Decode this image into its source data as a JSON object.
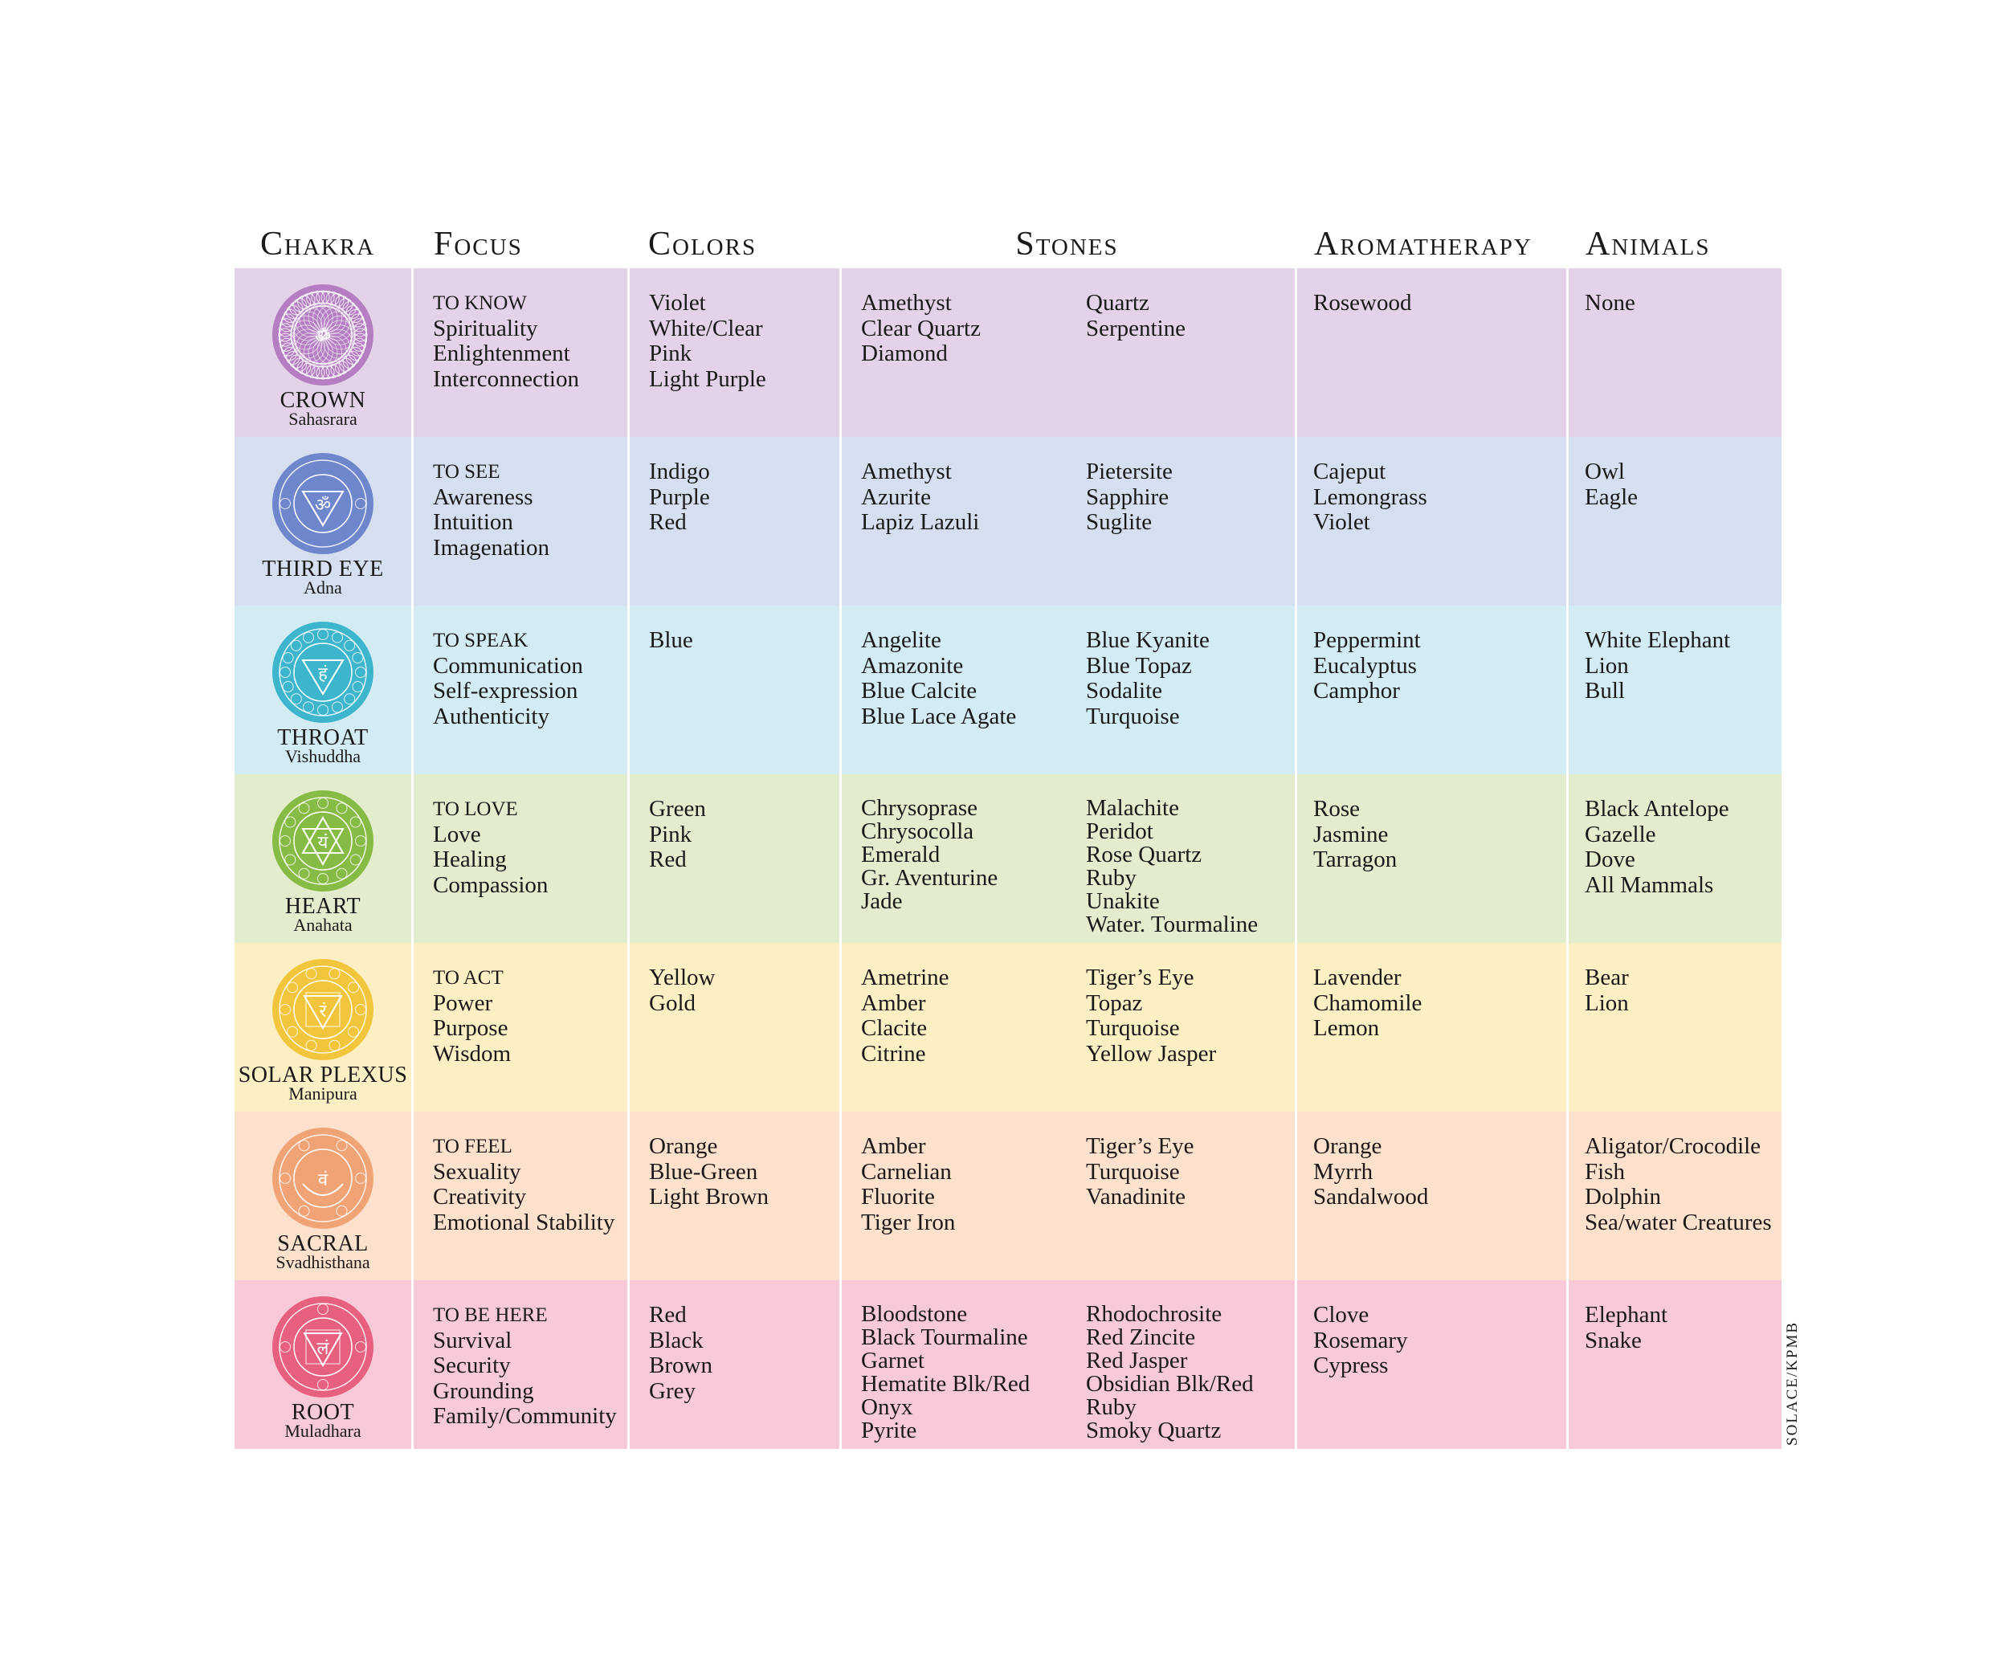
{
  "headers": {
    "chakra": "Chakra",
    "focus": "Focus",
    "colors": "Colors",
    "stones": "Stones",
    "aromatherapy": "Aromatherapy",
    "animals": "Animals"
  },
  "rows": [
    {
      "name": "CROWN",
      "sanskrit": "Sahasrara",
      "color": "#b57ec2",
      "bg": "#e4d2e8",
      "glyph": "ॐ",
      "focus_title": "TO KNOW",
      "focus": [
        "Spirituality",
        "Enlightenment",
        "Interconnection"
      ],
      "colors": [
        "Violet",
        "White/Clear",
        "Pink",
        "Light Purple"
      ],
      "stones_a": [
        "Amethyst",
        "Clear Quartz",
        "Diamond"
      ],
      "stones_b": [
        "Quartz",
        "Serpentine"
      ],
      "aroma": [
        "Rosewood"
      ],
      "animals": [
        "None"
      ]
    },
    {
      "name": "THIRD EYE",
      "sanskrit": "Adna",
      "color": "#6e86cc",
      "bg": "#d6dff0",
      "glyph": "ॐ",
      "focus_title": "TO SEE",
      "focus": [
        "Awareness",
        "Intuition",
        "Imagenation"
      ],
      "colors": [
        "Indigo",
        "Purple",
        "Red"
      ],
      "stones_a": [
        "Amethyst",
        "Azurite",
        "Lapiz Lazuli"
      ],
      "stones_b": [
        "Pietersite",
        "Sapphire",
        "Suglite"
      ],
      "aroma": [
        "Cajeput",
        "Lemongrass",
        "Violet"
      ],
      "animals": [
        "Owl",
        "Eagle"
      ]
    },
    {
      "name": "THROAT",
      "sanskrit": "Vishuddha",
      "color": "#3cb5cd",
      "bg": "#d3ebf2",
      "glyph": "हं",
      "focus_title": "TO SPEAK",
      "focus": [
        "Communication",
        "Self-expression",
        "Authenticity"
      ],
      "colors": [
        "Blue"
      ],
      "stones_a": [
        "Angelite",
        "Amazonite",
        "Blue Calcite",
        "Blue Lace Agate"
      ],
      "stones_b": [
        "Blue Kyanite",
        "Blue Topaz",
        "Sodalite",
        "Turquoise"
      ],
      "aroma": [
        "Peppermint",
        "Eucalyptus",
        "Camphor"
      ],
      "animals": [
        "White Elephant",
        "Lion",
        "Bull"
      ]
    },
    {
      "name": "HEART",
      "sanskrit": "Anahata",
      "color": "#86bb45",
      "bg": "#e3edce",
      "glyph": "यं",
      "focus_title": "TO LOVE",
      "focus": [
        "Love",
        "Healing",
        "Compassion"
      ],
      "colors": [
        "Green",
        "Pink",
        "Red"
      ],
      "stones_a": [
        "Chrysoprase",
        "Chrysocolla",
        "Emerald",
        "Gr. Aventurine",
        "Jade"
      ],
      "stones_b": [
        "Malachite",
        "Peridot",
        "Rose Quartz",
        "Ruby",
        "Unakite",
        "Water. Tourmaline"
      ],
      "aroma": [
        "Rose",
        "Jasmine",
        "Tarragon"
      ],
      "animals": [
        "Black Antelope",
        "Gazelle",
        "Dove",
        "All Mammals"
      ]
    },
    {
      "name": "SOLAR PLEXUS",
      "sanskrit": "Manipura",
      "color": "#f2c63c",
      "bg": "#fcefc3",
      "glyph": "रं",
      "focus_title": "TO ACT",
      "focus": [
        "Power",
        "Purpose",
        "Wisdom"
      ],
      "colors": [
        "Yellow",
        "Gold"
      ],
      "stones_a": [
        "Ametrine",
        "Amber",
        "Clacite",
        "Citrine"
      ],
      "stones_b": [
        "Tiger’s Eye",
        "Topaz",
        "Turquoise",
        "Yellow Jasper"
      ],
      "aroma": [
        "Lavender",
        "Chamomile",
        "Lemon"
      ],
      "animals": [
        "Bear",
        "Lion"
      ]
    },
    {
      "name": "SACRAL",
      "sanskrit": "Svadhisthana",
      "color": "#f0a476",
      "bg": "#fde1cd",
      "glyph": "वं",
      "focus_title": "TO FEEL",
      "focus": [
        "Sexuality",
        "Creativity",
        "Emotional Stability"
      ],
      "colors": [
        "Orange",
        "Blue-Green",
        "Light Brown"
      ],
      "stones_a": [
        "Amber",
        "Carnelian",
        "Fluorite",
        "Tiger Iron"
      ],
      "stones_b": [
        "Tiger’s Eye",
        "Turquoise",
        "Vanadinite"
      ],
      "aroma": [
        "Orange",
        "Myrrh",
        "Sandalwood"
      ],
      "animals": [
        "Aligator/Crocodile",
        "Fish",
        "Dolphin",
        "Sea/water Creatures"
      ]
    },
    {
      "name": "ROOT",
      "sanskrit": "Muladhara",
      "color": "#e8607f",
      "bg": "#f8c9d6",
      "glyph": "लं",
      "focus_title": "TO BE HERE",
      "focus": [
        "Survival",
        "Security",
        "Grounding",
        "Family/Community"
      ],
      "colors": [
        "Red",
        "Black",
        "Brown",
        "Grey"
      ],
      "stones_a": [
        "Bloodstone",
        "Black Tourmaline",
        "Garnet",
        "Hematite Blk/Red",
        "Onyx",
        "Pyrite"
      ],
      "stones_b": [
        "Rhodochrosite",
        "Red Zincite",
        "Red Jasper",
        "Obsidian Blk/Red",
        "Ruby",
        "Smoky Quartz"
      ],
      "aroma": [
        "Clove",
        "Rosemary",
        "Cypress"
      ],
      "animals": [
        "Elephant",
        "Snake"
      ]
    }
  ],
  "credit": "SOLACE/KPMB"
}
